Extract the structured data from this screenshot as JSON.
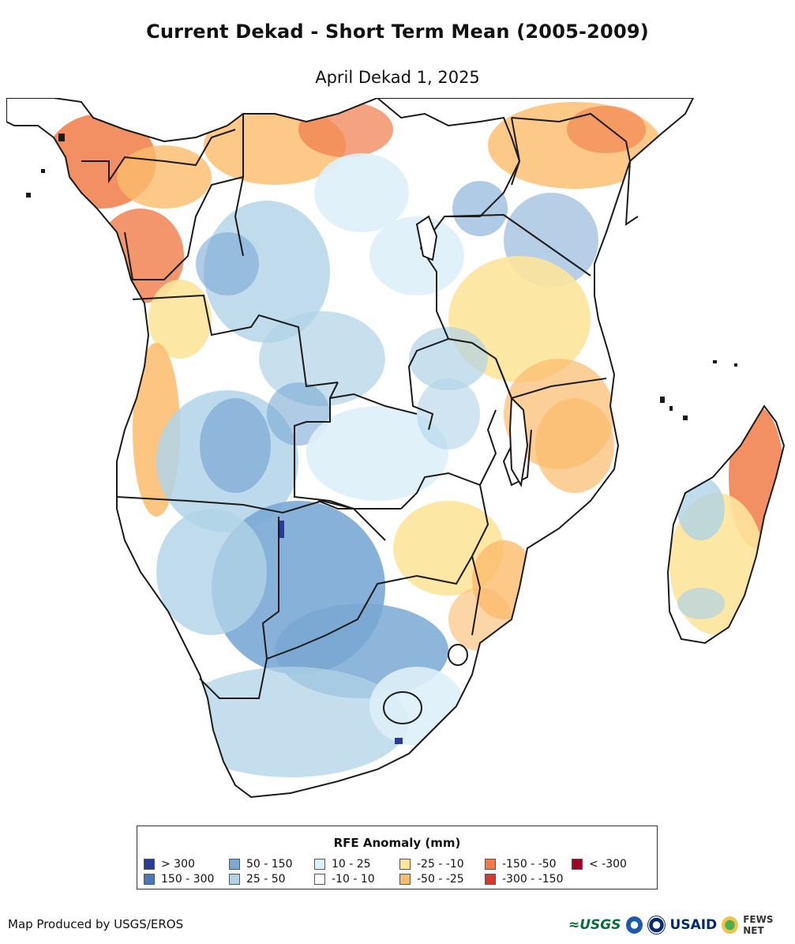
{
  "title": "Current Dekad - Short Term Mean (2005-2009)",
  "subtitle": "April Dekad 1, 2025",
  "legend": {
    "title": "RFE Anomaly (mm)",
    "items": [
      {
        "label": "> 300",
        "color": "#2b3a96"
      },
      {
        "label": "150 - 300",
        "color": "#4a77b6"
      },
      {
        "label": "50 - 150",
        "color": "#7aa8d4"
      },
      {
        "label": "25 - 50",
        "color": "#b0d3e7"
      },
      {
        "label": "10 - 25",
        "color": "#def0f8"
      },
      {
        "label": "-10 - 10",
        "color": "#ffffff"
      },
      {
        "label": "-25 - -10",
        "color": "#fde49b"
      },
      {
        "label": "-50 - -25",
        "color": "#fbbb6c"
      },
      {
        "label": "-150 - -50",
        "color": "#f07b48"
      },
      {
        "label": "-300 - -150",
        "color": "#d63a2f"
      },
      {
        "label": "< -300",
        "color": "#a50026"
      }
    ]
  },
  "credit": "Map Produced by USGS/EROS",
  "logos": {
    "usgs": "≈USGS",
    "usaid": "USAID",
    "fews": "FEWS NET"
  }
}
